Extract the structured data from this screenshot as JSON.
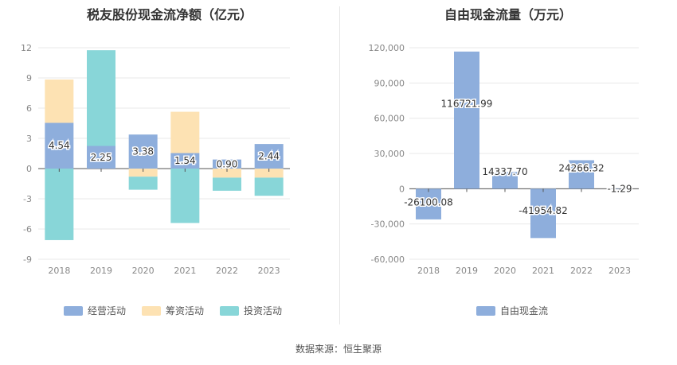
{
  "source": "数据来源：恒生聚源",
  "chart_data": [
    {
      "type": "bar",
      "stacked": true,
      "title": "税友股份现金流净额（亿元）",
      "categories": [
        "2018",
        "2019",
        "2020",
        "2021",
        "2022",
        "2023"
      ],
      "ylim": [
        -9,
        12
      ],
      "yticks": [
        12,
        9,
        6,
        3,
        0,
        -3,
        -6,
        -9
      ],
      "grid": true,
      "legend_position": "bottom",
      "series": [
        {
          "name": "经营活动",
          "color": "#8eaedc",
          "values": [
            4.54,
            2.25,
            3.38,
            1.54,
            0.9,
            2.44
          ],
          "labels": [
            "4.54",
            "2.25",
            "3.38",
            "1.54",
            "0.90",
            "2.44"
          ]
        },
        {
          "name": "筹资活动",
          "color": "#fde2b3",
          "values": [
            4.3,
            0,
            -0.8,
            4.1,
            -0.9,
            -0.9
          ]
        },
        {
          "name": "投资活动",
          "color": "#88d6d8",
          "values": [
            -7.1,
            9.5,
            -1.3,
            -5.4,
            -1.3,
            -1.8
          ]
        }
      ]
    },
    {
      "type": "bar",
      "title": "自由现金流量（万元）",
      "categories": [
        "2018",
        "2019",
        "2020",
        "2021",
        "2022",
        "2023"
      ],
      "ylim": [
        -60000,
        120000
      ],
      "yticks": [
        120000,
        90000,
        60000,
        30000,
        0,
        -30000,
        -60000
      ],
      "ytick_labels": [
        "120,000",
        "90,000",
        "60,000",
        "30,000",
        "0",
        "-30,000",
        "-60,000"
      ],
      "grid": true,
      "legend_position": "bottom",
      "series": [
        {
          "name": "自由现金流",
          "color": "#8eaedc",
          "values": [
            -26100.08,
            116721.99,
            14337.7,
            -41954.82,
            24266.32,
            -1.29
          ],
          "labels": [
            "-26100.08",
            "116721.99",
            "14337.70",
            "-41954.82",
            "24266.32",
            "-1.29"
          ]
        }
      ]
    }
  ]
}
